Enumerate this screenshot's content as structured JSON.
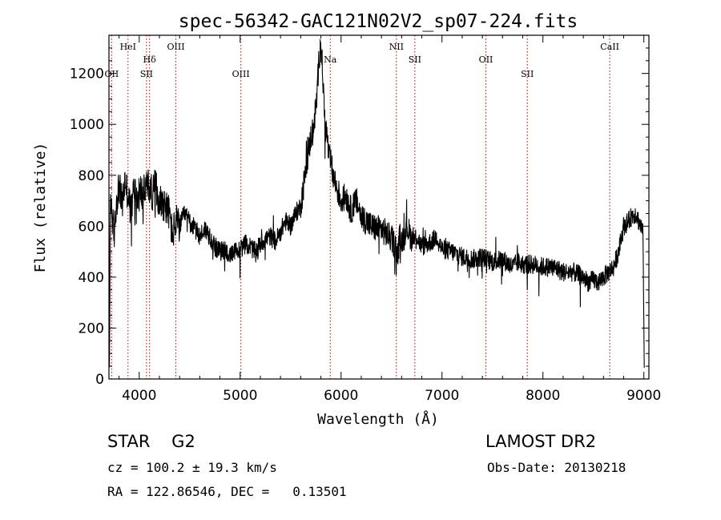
{
  "chart_data": {
    "type": "line",
    "title": "spec-56342-GAC121N02V2_sp07-224.fits",
    "xlabel": "Wavelength (Å)",
    "ylabel": "Flux (relative)",
    "xlim": [
      3700,
      9050
    ],
    "ylim": [
      0,
      1350
    ],
    "xticks": [
      4000,
      5000,
      6000,
      7000,
      8000,
      9000
    ],
    "yticks": [
      0,
      200,
      400,
      600,
      800,
      1000,
      1200
    ],
    "grid": false,
    "series": [
      {
        "color": "#000000",
        "x": [
          3700,
          3705,
          3715,
          3730,
          3750,
          3775,
          3800,
          3830,
          3860,
          3890,
          3920,
          3950,
          3980,
          4010,
          4040,
          4070,
          4100,
          4130,
          4160,
          4200,
          4250,
          4300,
          4330,
          4360,
          4400,
          4450,
          4500,
          4550,
          4600,
          4650,
          4700,
          4750,
          4800,
          4850,
          4900,
          4950,
          5000,
          5050,
          5100,
          5150,
          5200,
          5250,
          5300,
          5350,
          5400,
          5450,
          5500,
          5550,
          5600,
          5650,
          5700,
          5730,
          5760,
          5780,
          5800,
          5820,
          5840,
          5860,
          5880,
          5900,
          5920,
          5950,
          6000,
          6050,
          6100,
          6150,
          6200,
          6250,
          6300,
          6350,
          6400,
          6450,
          6500,
          6540,
          6560,
          6580,
          6600,
          6650,
          6700,
          6750,
          6800,
          6850,
          6900,
          6950,
          7000,
          7100,
          7200,
          7300,
          7400,
          7450,
          7500,
          7600,
          7700,
          7750,
          7800,
          7900,
          8000,
          8100,
          8200,
          8300,
          8400,
          8450,
          8500,
          8550,
          8600,
          8650,
          8700,
          8750,
          8780,
          8800,
          8850,
          8880,
          8920,
          8950,
          8970,
          8990,
          9000,
          9005
        ],
        "y": [
          700,
          20,
          720,
          650,
          560,
          700,
          760,
          680,
          780,
          720,
          650,
          760,
          700,
          740,
          720,
          770,
          750,
          730,
          760,
          700,
          690,
          650,
          560,
          620,
          600,
          650,
          620,
          590,
          560,
          590,
          560,
          520,
          500,
          510,
          480,
          500,
          510,
          530,
          520,
          500,
          530,
          550,
          560,
          540,
          580,
          620,
          600,
          650,
          680,
          820,
          950,
          1000,
          1100,
          1250,
          1330,
          1180,
          1000,
          960,
          870,
          850,
          800,
          760,
          700,
          720,
          660,
          700,
          640,
          620,
          600,
          590,
          590,
          570,
          550,
          520,
          470,
          560,
          540,
          600,
          550,
          560,
          520,
          530,
          540,
          560,
          510,
          500,
          480,
          470,
          480,
          470,
          460,
          470,
          440,
          460,
          450,
          450,
          440,
          440,
          420,
          420,
          400,
          380,
          390,
          380,
          400,
          420,
          440,
          500,
          560,
          600,
          620,
          640,
          650,
          620,
          600,
          580,
          220,
          0
        ]
      }
    ],
    "lines": [
      {
        "label": "HeI",
        "wavelength": 3889,
        "row": 0
      },
      {
        "label": "OII",
        "wavelength": 3727,
        "row": 2
      },
      {
        "label": "Hδ",
        "wavelength": 4102,
        "row": 1
      },
      {
        "label": "SII",
        "wavelength": 4072,
        "row": 2
      },
      {
        "label": "OIII",
        "wavelength": 4363,
        "row": 0
      },
      {
        "label": "OIII",
        "wavelength": 5007,
        "row": 2
      },
      {
        "label": "Na",
        "wavelength": 5893,
        "row": 1
      },
      {
        "label": "NII",
        "wavelength": 6548,
        "row": 0
      },
      {
        "label": "SII",
        "wavelength": 6731,
        "row": 1
      },
      {
        "label": "OII",
        "wavelength": 7435,
        "row": 1
      },
      {
        "label": "SII",
        "wavelength": 7845,
        "row": 2
      },
      {
        "label": "CaII",
        "wavelength": 8662,
        "row": 0
      }
    ],
    "line_color": "#c00000"
  },
  "info": {
    "classification": "STAR    G2",
    "survey": "LAMOST DR2",
    "redshift": "cz = 100.2 ± 19.3 km/s",
    "obs_date": "Obs-Date: 20130218",
    "coords": "RA = 122.86546, DEC =   0.13501"
  }
}
